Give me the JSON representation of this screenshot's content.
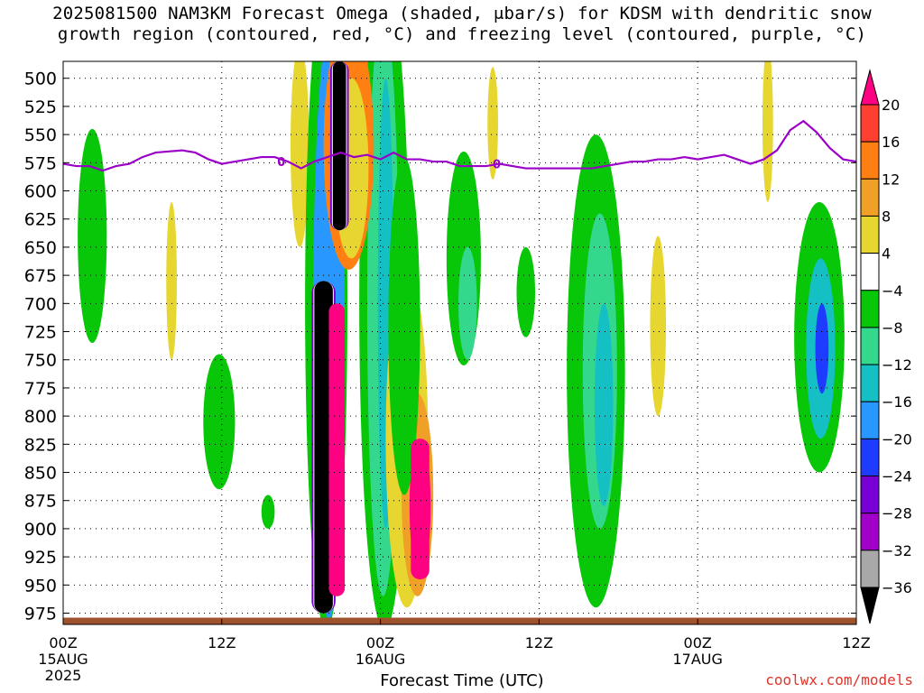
{
  "title_line1": "2025081500 NAM3KM Forecast Omega (shaded, μbar/s) for KDSM with dendritic snow",
  "title_line2": "growth region (contoured, red, °C) and freezing level (contoured, purple, °C)",
  "credit": "coolwx.com/models",
  "colors": {
    "freezing_line": "#9b00c8",
    "terrain": "#a0522d",
    "grid": "#000000"
  },
  "chart_data": {
    "type": "heatmap",
    "title": "2025081500 NAM3KM Forecast Omega (shaded, μbar/s) for KDSM with dendritic snow growth region (contoured, red, °C) and freezing level (contoured, purple, °C)",
    "xlabel": "Forecast Time (UTC)",
    "ylabel": "",
    "x_unit": "forecast hour",
    "xlim": [
      0,
      60
    ],
    "ylim": [
      985,
      485
    ],
    "y_ticks": [
      500,
      525,
      550,
      575,
      600,
      625,
      650,
      675,
      700,
      725,
      750,
      775,
      800,
      825,
      850,
      875,
      900,
      925,
      950,
      975
    ],
    "x_ticks": [
      {
        "hour": 0,
        "label": "00Z",
        "sub": "15AUG",
        "sub2": "2025"
      },
      {
        "hour": 12,
        "label": "12Z",
        "sub": "",
        "sub2": ""
      },
      {
        "hour": 24,
        "label": "00Z",
        "sub": "16AUG",
        "sub2": ""
      },
      {
        "hour": 36,
        "label": "12Z",
        "sub": "",
        "sub2": ""
      },
      {
        "hour": 48,
        "label": "00Z",
        "sub": "17AUG",
        "sub2": ""
      },
      {
        "hour": 60,
        "label": "12Z",
        "sub": "",
        "sub2": ""
      }
    ],
    "grid": true,
    "colorbar": {
      "labels": [
        "20",
        "16",
        "12",
        "8",
        "4",
        "−4",
        "−8",
        "−12",
        "−16",
        "−20",
        "−24",
        "−28",
        "−32",
        "−36"
      ],
      "colors": [
        "#fe0082",
        "#ff3f30",
        "#ff7f12",
        "#f0a026",
        "#e8d630",
        "#ffffff",
        "#08c608",
        "#34d88c",
        "#14c0c4",
        "#2897ff",
        "#1e3cff",
        "#7800d6",
        "#a000c8",
        "#a8a8a8",
        "#000000"
      ]
    },
    "freezing_level": {
      "label": "0",
      "x": [
        0,
        1,
        2,
        3,
        4,
        5,
        6,
        7,
        8,
        9,
        10,
        11,
        12,
        13,
        14,
        15,
        16,
        17,
        18,
        19,
        20,
        21,
        22,
        23,
        24,
        25,
        26,
        27,
        28,
        29,
        30,
        31,
        32,
        33,
        34,
        35,
        36,
        37,
        38,
        39,
        40,
        41,
        42,
        43,
        44,
        45,
        46,
        47,
        48,
        49,
        50,
        51,
        52,
        53,
        54,
        55,
        56,
        57,
        58,
        59,
        60
      ],
      "y": [
        576,
        578,
        578,
        582,
        578,
        576,
        570,
        566,
        565,
        564,
        566,
        572,
        576,
        574,
        572,
        570,
        570,
        574,
        580,
        574,
        570,
        566,
        570,
        568,
        572,
        566,
        572,
        572,
        574,
        574,
        578,
        578,
        578,
        576,
        578,
        580,
        580,
        580,
        580,
        580,
        580,
        578,
        576,
        574,
        574,
        572,
        572,
        570,
        572,
        570,
        568,
        572,
        576,
        572,
        564,
        546,
        538,
        548,
        562,
        572,
        574
      ]
    },
    "omega_regions": [
      {
        "name": "ascent core (upper)",
        "x": [
          20.4,
          21.4
        ],
        "y": [
          485,
          635
        ],
        "value": -36
      },
      {
        "name": "ascent core (lower)",
        "x": [
          19.0,
          20.4
        ],
        "y": [
          680,
          975
        ],
        "value": -36
      },
      {
        "name": "descent max",
        "x": [
          20.1,
          21.3
        ],
        "y": [
          700,
          960
        ],
        "value": 20
      },
      {
        "name": "descent max 2",
        "x": [
          26.3,
          27.7
        ],
        "y": [
          820,
          945
        ],
        "value": 20
      }
    ]
  }
}
